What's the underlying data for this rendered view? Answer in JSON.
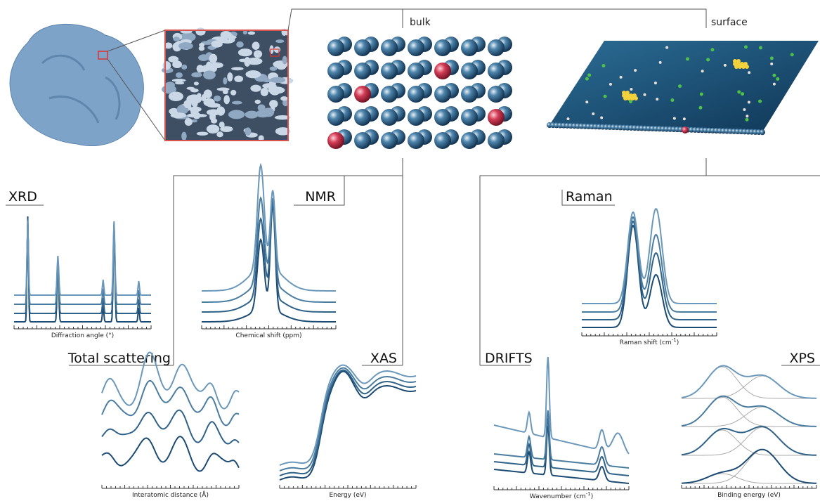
{
  "header": {
    "bulk": "bulk",
    "surface": "surface"
  },
  "panels": [
    {
      "title": "XRD",
      "axis_label": {
        "text": "Diffraction angle (°)"
      }
    },
    {
      "title": "NMR",
      "axis_label": {
        "text": "Chemical shift (ppm)"
      }
    },
    {
      "title": "Raman",
      "axis_label": {
        "text": "Raman shift (cm",
        "superscript": "-1",
        "suffix": ")"
      }
    },
    {
      "title": "Total scattering",
      "axis_label": {
        "text": "Interatomic distance (Å)"
      }
    },
    {
      "title": "XAS",
      "axis_label": {
        "text": "Energy (eV)"
      }
    },
    {
      "title": "DRIFTS",
      "axis_label": {
        "text": "Wavenumber (cm",
        "superscript": "-1",
        "suffix": ")"
      }
    },
    {
      "title": "XPS",
      "axis_label": {
        "text": "Binding energy (eV)"
      }
    }
  ]
}
